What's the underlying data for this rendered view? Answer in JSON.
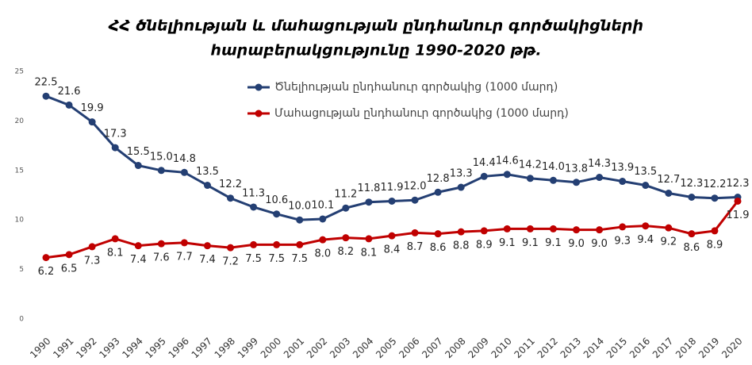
{
  "chart_data": {
    "type": "line",
    "title": [
      "ՀՀ ծնելիության և մահացության ընդհանուր գործակիցների",
      "հարաբերակցությունը 1990-2020 թթ."
    ],
    "categories": [
      "1990",
      "1991",
      "1992",
      "1993",
      "1994",
      "1995",
      "1996",
      "1997",
      "1998",
      "1999",
      "2000",
      "2001",
      "2002",
      "2003",
      "2004",
      "2005",
      "2006",
      "2007",
      "2008",
      "2009",
      "2010",
      "2011",
      "2012",
      "2013",
      "2014",
      "2015",
      "2016",
      "2017",
      "2018",
      "2019",
      "2020"
    ],
    "series": [
      {
        "name": "Ծնելիության ընդհանուր գործակից (1000 մարդ)",
        "color": "#243f73",
        "values": [
          22.5,
          21.6,
          19.9,
          17.3,
          15.5,
          15.0,
          14.8,
          13.5,
          12.2,
          11.3,
          10.6,
          10.0,
          10.1,
          11.2,
          11.8,
          11.9,
          12.0,
          12.8,
          13.3,
          14.4,
          14.6,
          14.2,
          14.0,
          13.8,
          14.3,
          13.9,
          13.5,
          12.7,
          12.3,
          12.2,
          12.3
        ],
        "value_labels": [
          "22.5",
          "21.6",
          "19.9",
          "17.3",
          "15.5",
          "15.0",
          "14.8",
          "13.5",
          "12.2",
          "11.3",
          "10.6",
          "10.0",
          "10.1",
          "11.2",
          "11.8",
          "11.9",
          "12.0",
          "12.8",
          "13.3",
          "14.4",
          "14.6",
          "14.2",
          "14.0",
          "13.8",
          "14.3",
          "13.9",
          "13.5",
          "12.7",
          "12.3",
          "12.2",
          "12.3"
        ]
      },
      {
        "name": "Մահացության ընդհանուր գործակից (1000 մարդ)",
        "color": "#c00000",
        "values": [
          6.2,
          6.5,
          7.3,
          8.1,
          7.4,
          7.6,
          7.7,
          7.4,
          7.2,
          7.5,
          7.5,
          7.5,
          8.0,
          8.2,
          8.1,
          8.4,
          8.7,
          8.6,
          8.8,
          8.9,
          9.1,
          9.1,
          9.1,
          9.0,
          9.0,
          9.3,
          9.4,
          9.2,
          8.6,
          8.9,
          11.9
        ],
        "value_labels": [
          "6.2",
          "6.5",
          "7.3",
          "8.1",
          "7.4",
          "7.6",
          "7.7",
          "7.4",
          "7.2",
          "7.5",
          "7.5",
          "7.5",
          "8.0",
          "8.2",
          "8.1",
          "8.4",
          "8.7",
          "8.6",
          "8.8",
          "8.9",
          "9.1",
          "9.1",
          "9.1",
          "9.0",
          "9.0",
          "9.3",
          "9.4",
          "9.2",
          "8.6",
          "8.9",
          "11.9"
        ]
      }
    ],
    "ylim": [
      0,
      25
    ],
    "yticks": [
      0,
      5,
      10,
      15,
      20,
      25
    ],
    "grid": false,
    "legend": "top"
  }
}
